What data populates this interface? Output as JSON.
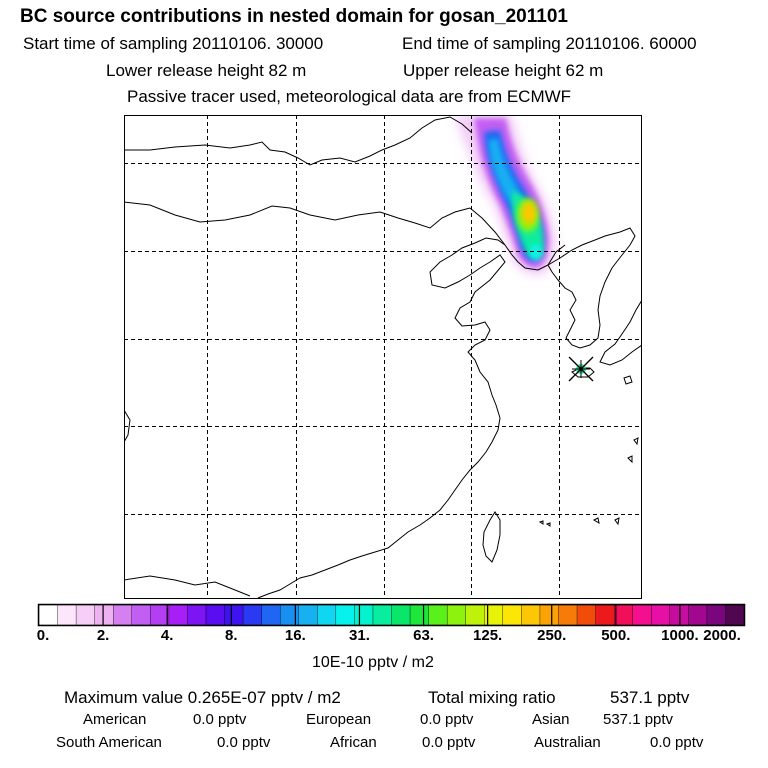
{
  "header": {
    "title": "BC  source contributions in nested domain for gosan_201101",
    "start_label": "Start time of sampling 20110106. 30000",
    "end_label": "End time of sampling 20110106. 60000",
    "lower_label": "Lower release height   82 m",
    "upper_label": "Upper release height   62 m",
    "note": "Passive tracer used, meteorological data are from ECMWF"
  },
  "colorbar": {
    "tick_labels": [
      "0.",
      "2.",
      "4.",
      "8.",
      "16.",
      "31.",
      "63.",
      "125.",
      "250.",
      "500.",
      "1000.",
      "2000."
    ],
    "units": "10E-10 pptv / m2",
    "colors": [
      "#ffffff",
      "#fbe6fb",
      "#f6cff6",
      "#eeb1f1",
      "#d67ff0",
      "#c35ef2",
      "#b43ef4",
      "#a71ef6",
      "#7d14f3",
      "#5a0df0",
      "#3f12f0",
      "#2a3af2",
      "#1f66f4",
      "#1a8ff2",
      "#17b1f2",
      "#10d6f2",
      "#07f2ec",
      "#05f2cf",
      "#08ed9e",
      "#0ae66a",
      "#1ee63a",
      "#5af01a",
      "#8ef20f",
      "#bff20a",
      "#e8f208",
      "#fbe605",
      "#fcc705",
      "#fba206",
      "#f77b08",
      "#f24c0a",
      "#ec1a1c",
      "#f20f5a",
      "#f40f8e",
      "#e70fa6",
      "#c70ca0",
      "#a1088f",
      "#7a067d",
      "#500650"
    ]
  },
  "stats": {
    "max_label": "Maximum value  0.265E-07 pptv / m2",
    "total_label": "Total mixing ratio",
    "total_value": "537.1 pptv",
    "american_label": "American",
    "american_value": "0.0 pptv",
    "european_label": "European",
    "european_value": "0.0 pptv",
    "asian_label": "Asian",
    "asian_value": "537.1 pptv",
    "south_american_label": "South American",
    "south_american_value": "0.0 pptv",
    "african_label": "African",
    "african_value": "0.0 pptv",
    "australian_label": "Australian",
    "australian_value": "0.0 pptv"
  }
}
